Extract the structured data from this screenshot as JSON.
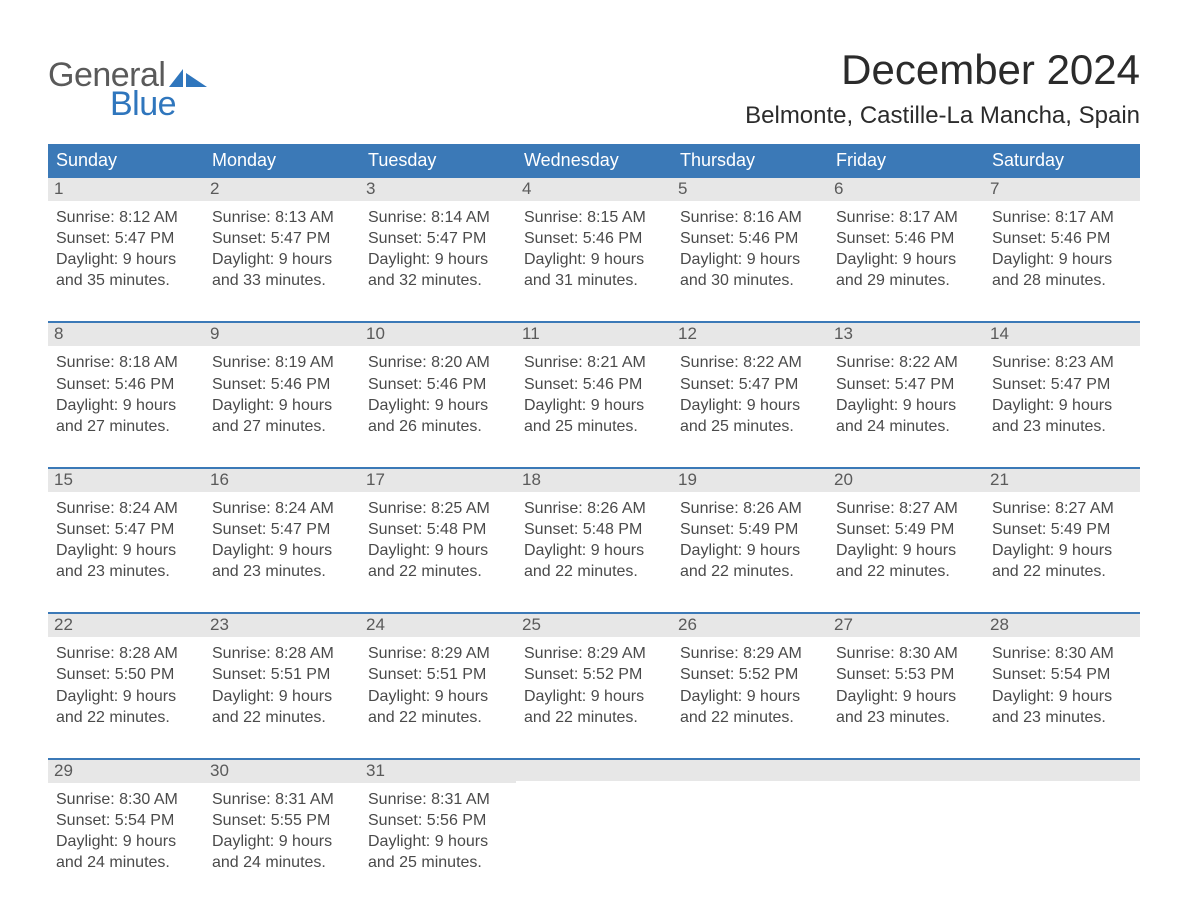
{
  "logo": {
    "text1": "General",
    "text2": "Blue"
  },
  "title": "December 2024",
  "location": "Belmonte, Castille-La Mancha, Spain",
  "colors": {
    "header_blue": "#3b79b7",
    "daynum_bg": "#e7e7e7",
    "logo_gray": "#5a5a5a",
    "logo_blue": "#2f76bd",
    "background": "#ffffff"
  },
  "days_of_week": [
    "Sunday",
    "Monday",
    "Tuesday",
    "Wednesday",
    "Thursday",
    "Friday",
    "Saturday"
  ],
  "weeks": [
    [
      {
        "n": 1,
        "sunrise": "8:12 AM",
        "sunset": "5:47 PM",
        "dl1": "9 hours",
        "dl2": "and 35 minutes."
      },
      {
        "n": 2,
        "sunrise": "8:13 AM",
        "sunset": "5:47 PM",
        "dl1": "9 hours",
        "dl2": "and 33 minutes."
      },
      {
        "n": 3,
        "sunrise": "8:14 AM",
        "sunset": "5:47 PM",
        "dl1": "9 hours",
        "dl2": "and 32 minutes."
      },
      {
        "n": 4,
        "sunrise": "8:15 AM",
        "sunset": "5:46 PM",
        "dl1": "9 hours",
        "dl2": "and 31 minutes."
      },
      {
        "n": 5,
        "sunrise": "8:16 AM",
        "sunset": "5:46 PM",
        "dl1": "9 hours",
        "dl2": "and 30 minutes."
      },
      {
        "n": 6,
        "sunrise": "8:17 AM",
        "sunset": "5:46 PM",
        "dl1": "9 hours",
        "dl2": "and 29 minutes."
      },
      {
        "n": 7,
        "sunrise": "8:17 AM",
        "sunset": "5:46 PM",
        "dl1": "9 hours",
        "dl2": "and 28 minutes."
      }
    ],
    [
      {
        "n": 8,
        "sunrise": "8:18 AM",
        "sunset": "5:46 PM",
        "dl1": "9 hours",
        "dl2": "and 27 minutes."
      },
      {
        "n": 9,
        "sunrise": "8:19 AM",
        "sunset": "5:46 PM",
        "dl1": "9 hours",
        "dl2": "and 27 minutes."
      },
      {
        "n": 10,
        "sunrise": "8:20 AM",
        "sunset": "5:46 PM",
        "dl1": "9 hours",
        "dl2": "and 26 minutes."
      },
      {
        "n": 11,
        "sunrise": "8:21 AM",
        "sunset": "5:46 PM",
        "dl1": "9 hours",
        "dl2": "and 25 minutes."
      },
      {
        "n": 12,
        "sunrise": "8:22 AM",
        "sunset": "5:47 PM",
        "dl1": "9 hours",
        "dl2": "and 25 minutes."
      },
      {
        "n": 13,
        "sunrise": "8:22 AM",
        "sunset": "5:47 PM",
        "dl1": "9 hours",
        "dl2": "and 24 minutes."
      },
      {
        "n": 14,
        "sunrise": "8:23 AM",
        "sunset": "5:47 PM",
        "dl1": "9 hours",
        "dl2": "and 23 minutes."
      }
    ],
    [
      {
        "n": 15,
        "sunrise": "8:24 AM",
        "sunset": "5:47 PM",
        "dl1": "9 hours",
        "dl2": "and 23 minutes."
      },
      {
        "n": 16,
        "sunrise": "8:24 AM",
        "sunset": "5:47 PM",
        "dl1": "9 hours",
        "dl2": "and 23 minutes."
      },
      {
        "n": 17,
        "sunrise": "8:25 AM",
        "sunset": "5:48 PM",
        "dl1": "9 hours",
        "dl2": "and 22 minutes."
      },
      {
        "n": 18,
        "sunrise": "8:26 AM",
        "sunset": "5:48 PM",
        "dl1": "9 hours",
        "dl2": "and 22 minutes."
      },
      {
        "n": 19,
        "sunrise": "8:26 AM",
        "sunset": "5:49 PM",
        "dl1": "9 hours",
        "dl2": "and 22 minutes."
      },
      {
        "n": 20,
        "sunrise": "8:27 AM",
        "sunset": "5:49 PM",
        "dl1": "9 hours",
        "dl2": "and 22 minutes."
      },
      {
        "n": 21,
        "sunrise": "8:27 AM",
        "sunset": "5:49 PM",
        "dl1": "9 hours",
        "dl2": "and 22 minutes."
      }
    ],
    [
      {
        "n": 22,
        "sunrise": "8:28 AM",
        "sunset": "5:50 PM",
        "dl1": "9 hours",
        "dl2": "and 22 minutes."
      },
      {
        "n": 23,
        "sunrise": "8:28 AM",
        "sunset": "5:51 PM",
        "dl1": "9 hours",
        "dl2": "and 22 minutes."
      },
      {
        "n": 24,
        "sunrise": "8:29 AM",
        "sunset": "5:51 PM",
        "dl1": "9 hours",
        "dl2": "and 22 minutes."
      },
      {
        "n": 25,
        "sunrise": "8:29 AM",
        "sunset": "5:52 PM",
        "dl1": "9 hours",
        "dl2": "and 22 minutes."
      },
      {
        "n": 26,
        "sunrise": "8:29 AM",
        "sunset": "5:52 PM",
        "dl1": "9 hours",
        "dl2": "and 22 minutes."
      },
      {
        "n": 27,
        "sunrise": "8:30 AM",
        "sunset": "5:53 PM",
        "dl1": "9 hours",
        "dl2": "and 23 minutes."
      },
      {
        "n": 28,
        "sunrise": "8:30 AM",
        "sunset": "5:54 PM",
        "dl1": "9 hours",
        "dl2": "and 23 minutes."
      }
    ],
    [
      {
        "n": 29,
        "sunrise": "8:30 AM",
        "sunset": "5:54 PM",
        "dl1": "9 hours",
        "dl2": "and 24 minutes."
      },
      {
        "n": 30,
        "sunrise": "8:31 AM",
        "sunset": "5:55 PM",
        "dl1": "9 hours",
        "dl2": "and 24 minutes."
      },
      {
        "n": 31,
        "sunrise": "8:31 AM",
        "sunset": "5:56 PM",
        "dl1": "9 hours",
        "dl2": "and 25 minutes."
      },
      null,
      null,
      null,
      null
    ]
  ],
  "labels": {
    "sunrise": "Sunrise: ",
    "sunset": "Sunset: ",
    "daylight": "Daylight: "
  }
}
